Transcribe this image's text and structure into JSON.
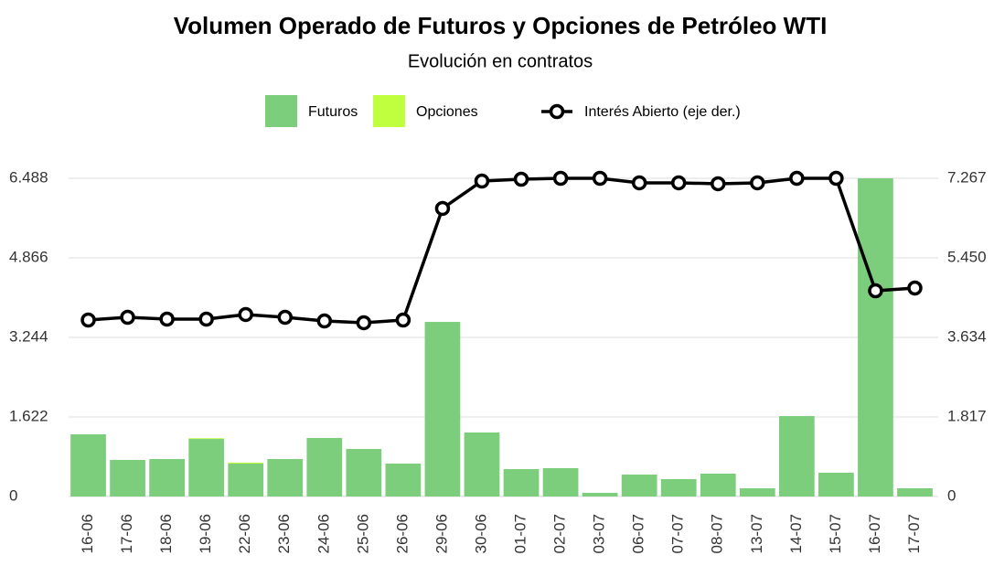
{
  "chart_data": {
    "type": "bar",
    "title": "Volumen Operado de Futuros y Opciones de Petróleo WTI",
    "subtitle": "Evolución en contratos",
    "categories": [
      "16-06",
      "17-06",
      "18-06",
      "19-06",
      "22-06",
      "23-06",
      "24-06",
      "25-06",
      "26-06",
      "29-06",
      "30-06",
      "01-07",
      "02-07",
      "03-07",
      "06-07",
      "07-07",
      "08-07",
      "13-07",
      "14-07",
      "15-07",
      "16-07",
      "17-07"
    ],
    "series": [
      {
        "name": "Futuros",
        "color": "#7ccd7c",
        "values": [
          1268,
          746,
          764,
          1174,
          671,
          764,
          1193,
          969,
          671,
          3560,
          1305,
          559,
          578,
          75,
          447,
          354,
          466,
          168,
          1640,
          485,
          6488,
          168
        ]
      },
      {
        "name": "Opciones",
        "color": "#c0ff3e",
        "values": [
          0,
          0,
          0,
          15,
          20,
          0,
          0,
          0,
          0,
          0,
          0,
          0,
          0,
          0,
          0,
          0,
          0,
          0,
          0,
          0,
          0,
          0
        ]
      },
      {
        "name": "Interés Abierto (eje der.)",
        "color": "#000000",
        "axis": "y2",
        "type": "line",
        "values": [
          4030,
          4093,
          4051,
          4051,
          4156,
          4093,
          4009,
          3968,
          4030,
          6578,
          7204,
          7246,
          7267,
          7267,
          7163,
          7163,
          7142,
          7163,
          7267,
          7267,
          4698,
          4761
        ]
      }
    ],
    "stacked": true,
    "ylim": [
      0,
      6700
    ],
    "yticks": [
      0,
      {
        "value": 1622,
        "label": "1.622"
      },
      {
        "value": 3244,
        "label": "3.244"
      },
      {
        "value": 4866,
        "label": "4.866"
      },
      {
        "value": 6488,
        "label": "6.488"
      }
    ],
    "y2lim": [
      0,
      7504
    ],
    "y2ticks": [
      0,
      {
        "value": 1817,
        "label": "1.817"
      },
      {
        "value": 3634,
        "label": "3.634"
      },
      {
        "value": 5450,
        "label": "5.450"
      },
      {
        "value": 7267,
        "label": "7.267"
      }
    ],
    "grid": true
  }
}
